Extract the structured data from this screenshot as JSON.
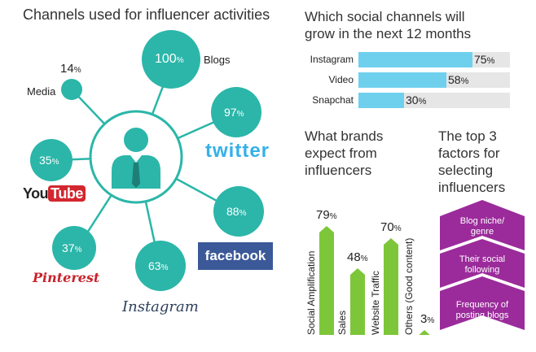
{
  "left": {
    "title": "Channels used for influencer activities",
    "nodes": [
      {
        "name": "Blogs",
        "value": "100",
        "unit": "%"
      },
      {
        "name": "Media",
        "value": "14",
        "unit": "%"
      },
      {
        "name": "twitter",
        "value": "97",
        "unit": "%"
      },
      {
        "name": "YouTube",
        "value": "35",
        "unit": "%"
      },
      {
        "name": "facebook",
        "value": "88",
        "unit": "%"
      },
      {
        "name": "Pinterest",
        "value": "37",
        "unit": "%"
      },
      {
        "name": "Instagram",
        "value": "63",
        "unit": "%"
      }
    ],
    "logos": {
      "youtube_a": "You",
      "youtube_b": "Tube",
      "twitter": "twitter",
      "facebook": "facebook",
      "pinterest": "Pinterest",
      "instagram": "Instagram"
    },
    "colors": {
      "teal": "#2bb6a9"
    }
  },
  "growth": {
    "title": "Which social channels will grow in the next 12 months",
    "title_lines": [
      "Which social channels will",
      "grow in the next 12 months"
    ]
  },
  "expect": {
    "title_lines": [
      "What brands",
      "expect from",
      "influencers"
    ]
  },
  "factors": {
    "title_lines": [
      "The top 3",
      "factors for",
      "selecting",
      "influencers"
    ],
    "items": [
      [
        "Blog niche/",
        "genre"
      ],
      [
        "Their social",
        "following"
      ],
      [
        "Frequency of",
        "posting blogs"
      ]
    ],
    "color": "#9b2b9b"
  },
  "chart_data": [
    {
      "type": "bar",
      "orientation": "horizontal",
      "title": "Which social channels will grow in the next 12 months",
      "categories": [
        "Instagram",
        "Video",
        "Snapchat"
      ],
      "values": [
        75,
        58,
        30
      ],
      "unit": "%",
      "xlim": [
        0,
        100
      ],
      "color": "#6fd0ee"
    },
    {
      "type": "bar",
      "title": "What brands expect from influencers",
      "categories": [
        "Social Amplification",
        "Sales",
        "Website Traffic",
        "Others (Good content)"
      ],
      "values": [
        79,
        48,
        70,
        3
      ],
      "unit": "%",
      "ylim": [
        0,
        100
      ],
      "color": "#7dc63a"
    }
  ]
}
